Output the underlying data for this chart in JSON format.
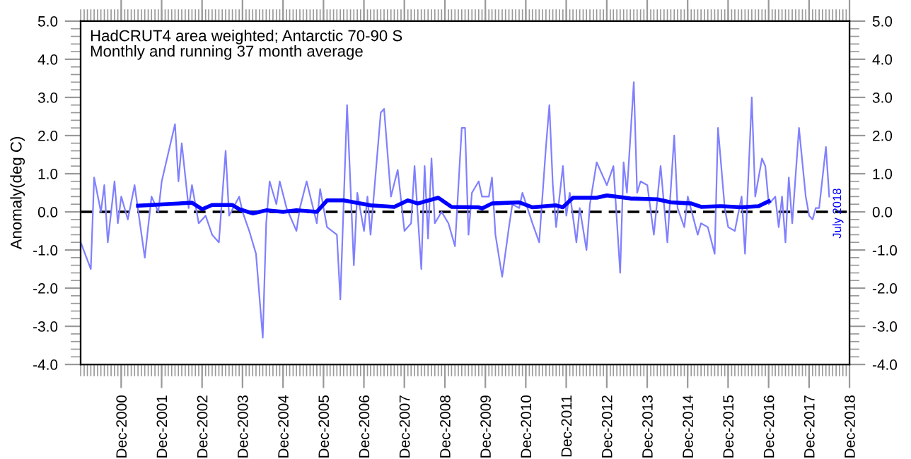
{
  "chart_data": {
    "type": "line",
    "title": "HadCRUT4 area weighted; Antarctic 70-90 S",
    "subtitle": "Monthly and running 37 month average",
    "ylabel": "Anomaly(deg C)",
    "annotations": [
      "July 2018"
    ],
    "series": [
      {
        "color": "#8080ff",
        "x": [
          "2000-01",
          "2000-04",
          "2000-05",
          "2000-07",
          "2000-08",
          "2000-09",
          "2000-11",
          "2000-12",
          "2001-01",
          "2001-03",
          "2001-05",
          "2001-08",
          "2001-10",
          "2001-12",
          "2002-01",
          "2002-05",
          "2002-06",
          "2002-07",
          "2002-09",
          "2002-10",
          "2002-12",
          "2003-02",
          "2003-04",
          "2003-06",
          "2003-08",
          "2003-09",
          "2003-12",
          "2004-01",
          "2004-03",
          "2004-05",
          "2004-07",
          "2004-08",
          "2004-09",
          "2004-11",
          "2004-12",
          "2005-02",
          "2005-05",
          "2005-06",
          "2005-08",
          "2005-11",
          "2005-12",
          "2006-02",
          "2006-05",
          "2006-06",
          "2006-08",
          "2006-10",
          "2006-11",
          "2007-01",
          "2007-02",
          "2007-03",
          "2007-06",
          "2007-07",
          "2007-09",
          "2007-11",
          "2008-01",
          "2008-03",
          "2008-04",
          "2008-06",
          "2008-07",
          "2008-08",
          "2008-09",
          "2008-10",
          "2008-12",
          "2009-02",
          "2009-04",
          "2009-06",
          "2009-07",
          "2009-08",
          "2009-09",
          "2009-11",
          "2009-12",
          "2010-02",
          "2010-03",
          "2010-04",
          "2010-06",
          "2010-08",
          "2010-09",
          "2010-11",
          "2010-12",
          "2011-03",
          "2011-05",
          "2011-07",
          "2011-08",
          "2011-09",
          "2011-10",
          "2011-12",
          "2012-01",
          "2012-02",
          "2012-04",
          "2012-05",
          "2012-07",
          "2012-08",
          "2012-10",
          "2013-01",
          "2013-03",
          "2013-05",
          "2013-06",
          "2013-07",
          "2013-09",
          "2013-10",
          "2013-11",
          "2014-01",
          "2014-03",
          "2014-05",
          "2014-07",
          "2014-09",
          "2014-10",
          "2014-12",
          "2015-01",
          "2015-04",
          "2015-05",
          "2015-07",
          "2015-09",
          "2015-10",
          "2015-12",
          "2016-01",
          "2016-03",
          "2016-05",
          "2016-06",
          "2016-08",
          "2016-09",
          "2016-11",
          "2016-12",
          "2017-01",
          "2017-03",
          "2017-04",
          "2017-05",
          "2017-06",
          "2017-07",
          "2017-08",
          "2017-10",
          "2017-12",
          "2018-01",
          "2018-02",
          "2018-03",
          "2018-04",
          "2018-06",
          "2018-07"
        ],
        "values": [
          -0.8,
          -1.5,
          0.9,
          0.0,
          0.7,
          -0.8,
          0.8,
          -0.3,
          0.4,
          -0.2,
          0.7,
          -1.2,
          0.4,
          0.0,
          0.8,
          2.3,
          0.8,
          1.8,
          0.1,
          0.7,
          -0.3,
          -0.1,
          -0.6,
          -0.8,
          1.6,
          -0.1,
          0.4,
          0.0,
          -0.5,
          -1.1,
          -3.3,
          -0.3,
          0.8,
          0.2,
          0.8,
          0.1,
          -0.5,
          0.1,
          0.8,
          -0.3,
          0.6,
          -0.4,
          -0.6,
          -2.3,
          2.8,
          -1.4,
          0.5,
          -0.5,
          0.4,
          -0.6,
          2.6,
          2.7,
          0.4,
          1.1,
          -0.5,
          -0.3,
          1.2,
          -1.5,
          1.2,
          -0.7,
          1.4,
          -0.3,
          0.0,
          -0.3,
          -0.9,
          2.2,
          2.2,
          -0.6,
          0.5,
          0.8,
          0.4,
          0.4,
          0.9,
          -0.6,
          -1.7,
          -0.4,
          0.2,
          0.1,
          0.5,
          -0.3,
          -0.8,
          1.7,
          2.8,
          0.7,
          -0.4,
          1.2,
          -0.1,
          0.5,
          -0.8,
          0.1,
          -1.0,
          0.2,
          1.3,
          0.7,
          1.2,
          -1.6,
          1.3,
          0.5,
          3.4,
          0.5,
          0.8,
          0.7,
          -0.6,
          1.2,
          -0.8,
          2.0,
          0.1,
          -0.4,
          0.4,
          -0.6,
          -0.3,
          -0.4,
          -1.1,
          2.2,
          0.1,
          -0.4,
          -0.5,
          0.4,
          -1.1,
          3.0,
          0.4,
          1.4,
          1.2,
          0.2,
          0.4,
          -0.4,
          0.4,
          -0.8,
          0.9,
          -0.3,
          2.2,
          0.4,
          -0.1,
          -0.2,
          0.1,
          0.1,
          1.7,
          0.4
        ]
      },
      {
        "color": "#0000ff",
        "x": [
          "2001-06",
          "2002-10",
          "2003-01",
          "2003-04",
          "2003-10",
          "2003-12",
          "2004-04",
          "2004-08",
          "2005-01",
          "2005-05",
          "2005-11",
          "2006-02",
          "2006-07",
          "2007-03",
          "2007-10",
          "2008-02",
          "2008-05",
          "2008-11",
          "2009-03",
          "2009-11",
          "2009-12",
          "2010-03",
          "2010-11",
          "2011-03",
          "2011-10",
          "2011-12",
          "2012-03",
          "2012-10",
          "2013-01",
          "2013-08",
          "2014-04",
          "2014-08",
          "2015-02",
          "2015-05",
          "2015-11",
          "2016-05",
          "2016-10",
          "2017-01"
        ],
        "values": [
          0.16,
          0.24,
          0.07,
          0.18,
          0.18,
          0.07,
          -0.04,
          0.04,
          0.0,
          0.04,
          0.0,
          0.3,
          0.3,
          0.17,
          0.13,
          0.3,
          0.22,
          0.37,
          0.13,
          0.12,
          0.09,
          0.22,
          0.25,
          0.12,
          0.17,
          0.12,
          0.37,
          0.37,
          0.43,
          0.35,
          0.33,
          0.25,
          0.22,
          0.13,
          0.15,
          0.12,
          0.15,
          0.28
        ]
      }
    ],
    "xlim": [
      "1999-12-31",
      "2018-12-31"
    ],
    "xticks": [
      {
        "value": "2000-12-31",
        "label": "Dec-2000"
      },
      {
        "value": "2001-12-31",
        "label": "Dec-2001"
      },
      {
        "value": "2002-12-31",
        "label": "Dec-2002"
      },
      {
        "value": "2003-12-31",
        "label": "Dec-2003"
      },
      {
        "value": "2004-12-31",
        "label": "Dec-2004"
      },
      {
        "value": "2005-12-31",
        "label": "Dec-2005"
      },
      {
        "value": "2006-12-31",
        "label": "Dec-2006"
      },
      {
        "value": "2007-12-31",
        "label": "Dec-2007"
      },
      {
        "value": "2008-12-31",
        "label": "Dec-2008"
      },
      {
        "value": "2009-12-31",
        "label": "Dec-2009"
      },
      {
        "value": "2010-12-31",
        "label": "Dec-2010"
      },
      {
        "value": "2011-12-31",
        "label": "Dec-2011"
      },
      {
        "value": "2012-12-31",
        "label": "Dec-2012"
      },
      {
        "value": "2013-12-31",
        "label": "Dec-2013"
      },
      {
        "value": "2014-12-31",
        "label": "Dec-2014"
      },
      {
        "value": "2015-12-31",
        "label": "Dec-2015"
      },
      {
        "value": "2016-12-31",
        "label": "Dec-2016"
      },
      {
        "value": "2017-12-31",
        "label": "Dec-2017"
      },
      {
        "value": "2018-12-31",
        "label": "Dec-2018"
      }
    ],
    "ylim": [
      -4,
      5
    ],
    "yticks": [
      {
        "value": -4,
        "label": "-4.0"
      },
      {
        "value": -3,
        "label": "-3.0"
      },
      {
        "value": -2,
        "label": "-2.0"
      },
      {
        "value": -1,
        "label": "-1.0"
      },
      {
        "value": 0,
        "label": "0.0"
      },
      {
        "value": 1,
        "label": "1.0"
      },
      {
        "value": 2,
        "label": "2.0"
      },
      {
        "value": 3,
        "label": "3.0"
      },
      {
        "value": 4,
        "label": "4.0"
      },
      {
        "value": 5,
        "label": "5.0"
      }
    ],
    "y2lim": [
      -4,
      5
    ],
    "y2ticks": [
      {
        "value": -4,
        "label": "-4.0"
      },
      {
        "value": -3,
        "label": "-3.0"
      },
      {
        "value": -2,
        "label": "-2.0"
      },
      {
        "value": -1,
        "label": "-1.0"
      },
      {
        "value": 0,
        "label": "0.0"
      },
      {
        "value": 1,
        "label": "1.0"
      },
      {
        "value": 2,
        "label": "2.0"
      },
      {
        "value": 3,
        "label": "3.0"
      },
      {
        "value": 4,
        "label": "4.0"
      },
      {
        "value": 5,
        "label": "5.0"
      }
    ],
    "ref_lines": [
      {
        "axis": "y",
        "value": 0,
        "color": "#000000",
        "line_style": "dashed"
      }
    ],
    "grid": false,
    "legend": false
  }
}
